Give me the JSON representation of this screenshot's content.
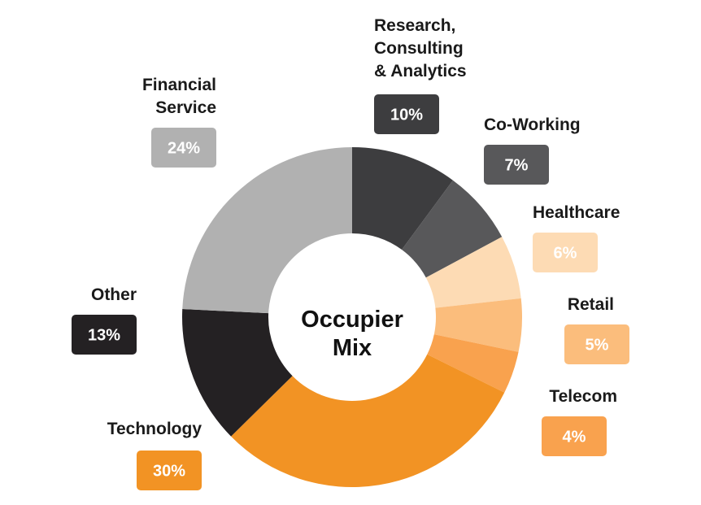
{
  "chart_data": {
    "type": "pie",
    "title": "Occupier Mix",
    "title_lines": [
      "Occupier",
      "Mix"
    ],
    "donut": true,
    "unit": "%",
    "slices": [
      {
        "label_lines": [
          "Research,",
          "Consulting",
          "& Analytics"
        ],
        "value": 10,
        "value_label": "10%",
        "color": "#3d3d3f",
        "text_color": "#ffffff"
      },
      {
        "label_lines": [
          "Co-Working"
        ],
        "value": 7,
        "value_label": "7%",
        "color": "#58585a",
        "text_color": "#ffffff"
      },
      {
        "label_lines": [
          "Healthcare"
        ],
        "value": 6,
        "value_label": "6%",
        "color": "#fddbb4",
        "text_color": "#ffffff"
      },
      {
        "label_lines": [
          "Retail"
        ],
        "value": 5,
        "value_label": "5%",
        "color": "#fbbd7c",
        "text_color": "#ffffff"
      },
      {
        "label_lines": [
          "Telecom"
        ],
        "value": 4,
        "value_label": "4%",
        "color": "#f9a24e",
        "text_color": "#ffffff"
      },
      {
        "label_lines": [
          "Technology"
        ],
        "value": 30,
        "value_label": "30%",
        "color": "#f29324",
        "text_color": "#ffffff"
      },
      {
        "label_lines": [
          "Other"
        ],
        "value": 13,
        "value_label": "13%",
        "color": "#242123",
        "text_color": "#ffffff"
      },
      {
        "label_lines": [
          "Financial",
          "Service"
        ],
        "value": 24,
        "value_label": "24%",
        "color": "#b1b1b1",
        "text_color": "#ffffff"
      }
    ]
  }
}
